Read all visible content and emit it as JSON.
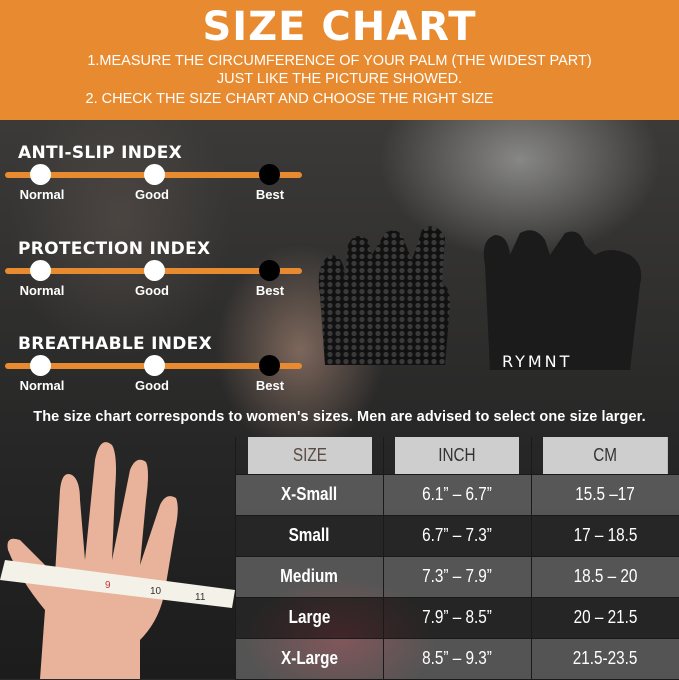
{
  "header": {
    "title": "SIZE CHART",
    "instruction_1a": "1.MEASURE THE CIRCUMFERENCE OF YOUR PALM (THE WIDEST PART)",
    "instruction_1b": "JUST LIKE THE PICTURE SHOWED.",
    "instruction_2": "2. CHECK THE SIZE CHART AND CHOOSE THE RIGHT SIZE"
  },
  "indexes": [
    {
      "title": "ANTI-SLIP INDEX",
      "levels": [
        "Normal",
        "Good",
        "Best"
      ],
      "selected": "Best"
    },
    {
      "title": "PROTECTION INDEX",
      "levels": [
        "Normal",
        "Good",
        "Best"
      ],
      "selected": "Best"
    },
    {
      "title": "BREATHABLE INDEX",
      "levels": [
        "Normal",
        "Good",
        "Best"
      ],
      "selected": "Best"
    }
  ],
  "brand": "RYMNT",
  "note": "The size chart corresponds to women's sizes. Men are advised to select one size larger.",
  "tape_numbers": [
    "9",
    "10",
    "11"
  ],
  "table": {
    "headers": [
      "SIZE",
      "INCH",
      "CM"
    ],
    "rows": [
      [
        "X-Small",
        "6.1” – 6.7”",
        "15.5 –17"
      ],
      [
        "Small",
        "6.7” – 7.3”",
        "17 – 18.5"
      ],
      [
        "Medium",
        "7.3” – 7.9”",
        "18.5 – 20"
      ],
      [
        "Large",
        "7.9” – 8.5”",
        "20 – 21.5"
      ],
      [
        "X-Large",
        "8.5” – 9.3”",
        "21.5-23.5"
      ]
    ]
  },
  "colors": {
    "accent": "#e88a2f",
    "selected_dot": "#000000",
    "dot": "#ffffff"
  }
}
